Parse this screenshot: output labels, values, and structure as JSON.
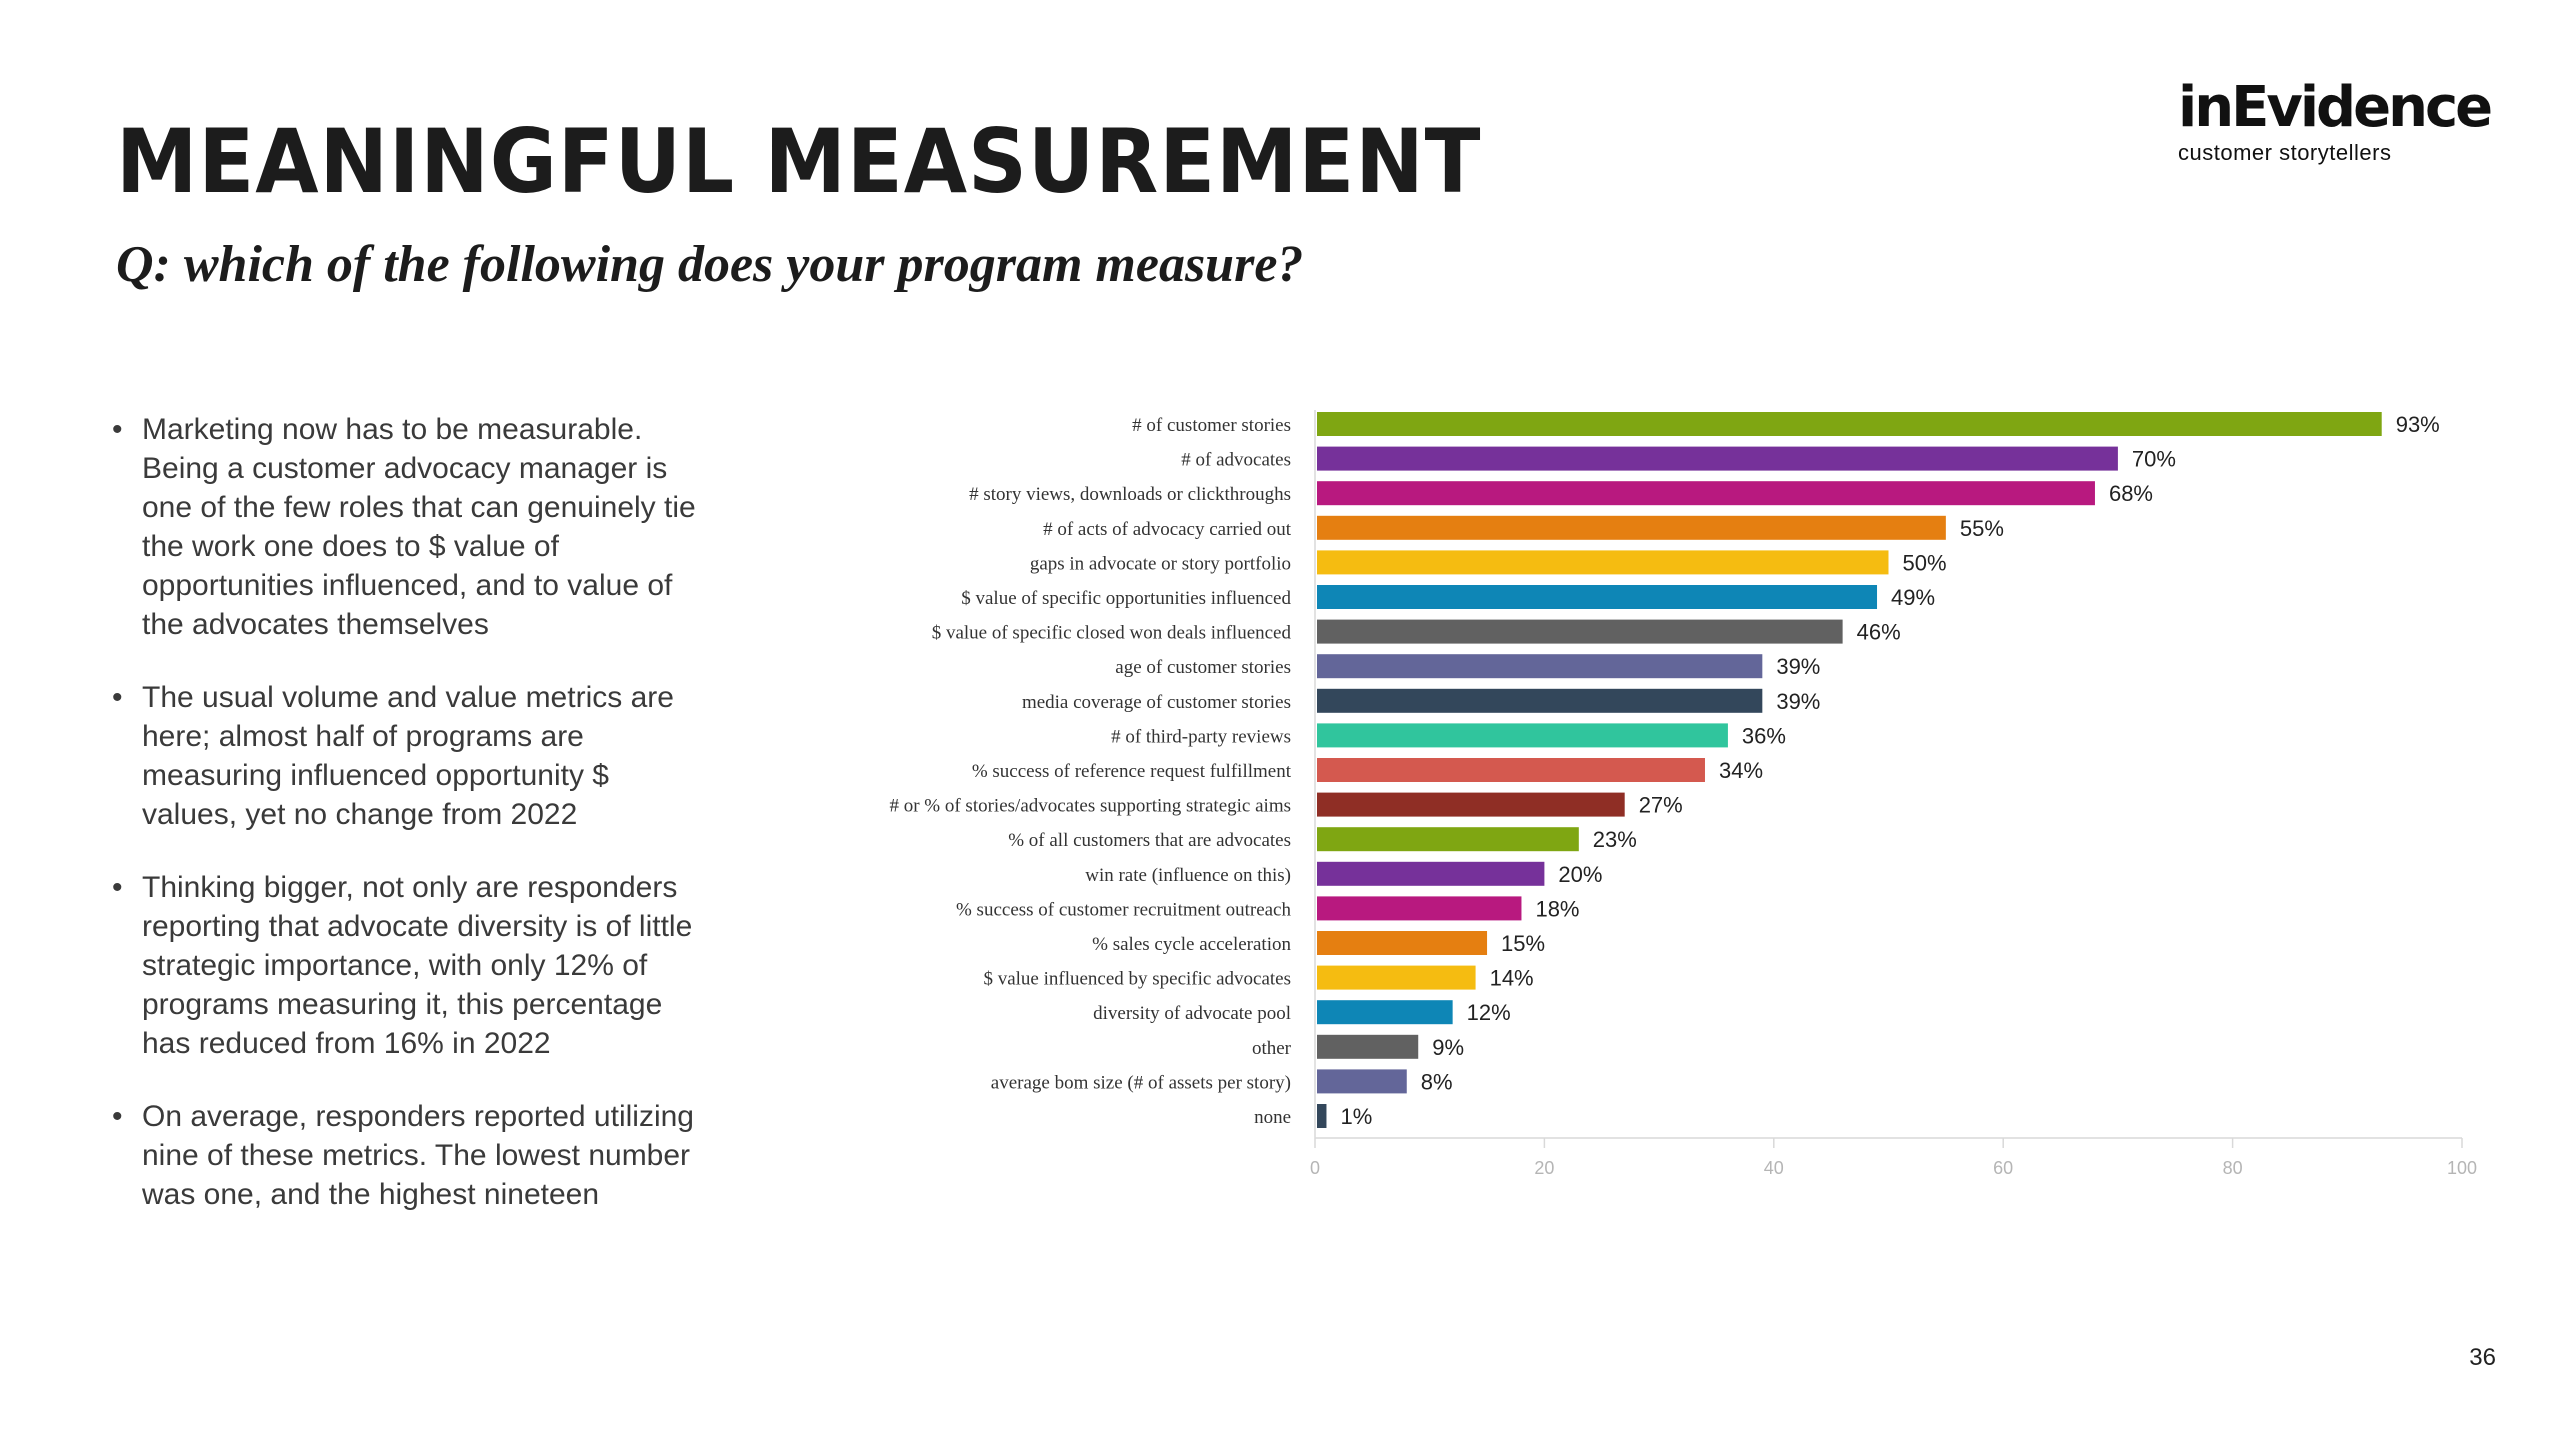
{
  "slide": {
    "title": "MEANINGFUL MEASUREMENT",
    "subtitle": "Q: which of the following does your program measure?",
    "page_number": "36"
  },
  "logo": {
    "name": "inEvidence",
    "tagline": "customer storytellers"
  },
  "bullets": [
    "Marketing now has to be measurable. Being a customer advocacy manager is one of the few roles that can genuinely tie the work one does to $ value of opportunities influenced, and to value of the advocates themselves",
    "The usual volume and value metrics are here; almost half of programs are measuring influenced opportunity $ values, yet no change from 2022",
    "Thinking bigger, not only are responders reporting that advocate diversity is of little strategic importance, with only 12% of programs measuring it, this percentage has reduced from 16% in 2022",
    "On average, responders reported utilizing nine of these metrics. The lowest number was one, and the highest nineteen"
  ],
  "chart_data": {
    "type": "bar",
    "orientation": "horizontal",
    "categories": [
      "# of customer stories",
      "# of advocates",
      "# story views, downloads or clickthroughs",
      "# of acts of advocacy carried out",
      "gaps in advocate or story portfolio",
      "$ value of specific opportunities influenced",
      "$ value of specific closed won deals influenced",
      "age of customer stories",
      "media coverage of customer stories",
      "# of third-party reviews",
      "% success of reference request fulfillment",
      "# or % of stories/advocates supporting strategic aims",
      "% of all customers that are advocates",
      "win rate (influence on this)",
      "% success of customer recruitment outreach",
      "% sales cycle acceleration",
      "$ value influenced by specific advocates",
      "diversity of advocate pool",
      "other",
      "average bom size (# of assets per story)",
      "none"
    ],
    "values": [
      93,
      70,
      68,
      55,
      50,
      49,
      46,
      39,
      39,
      36,
      34,
      27,
      23,
      20,
      18,
      15,
      14,
      12,
      9,
      8,
      1
    ],
    "value_labels": [
      "93%",
      "70%",
      "68%",
      "55%",
      "50%",
      "49%",
      "46%",
      "39%",
      "39%",
      "36%",
      "34%",
      "27%",
      "23%",
      "20%",
      "18%",
      "15%",
      "14%",
      "12%",
      "9%",
      "8%",
      "1%"
    ],
    "colors": [
      "#7fa612",
      "#76319a",
      "#b8197f",
      "#e57f11",
      "#f5bc11",
      "#0e86b6",
      "#616161",
      "#636699",
      "#33475b",
      "#30c59d",
      "#d4594f",
      "#8f2e25",
      "#7fa612",
      "#76319a",
      "#b8197f",
      "#e57f11",
      "#f5bc11",
      "#0e86b6",
      "#616161",
      "#636699",
      "#33475b"
    ],
    "xlim": [
      0,
      100
    ],
    "xticks": [
      "0",
      "20",
      "40",
      "60",
      "80",
      "100"
    ],
    "xlabel": "",
    "ylabel": "",
    "title": ""
  }
}
